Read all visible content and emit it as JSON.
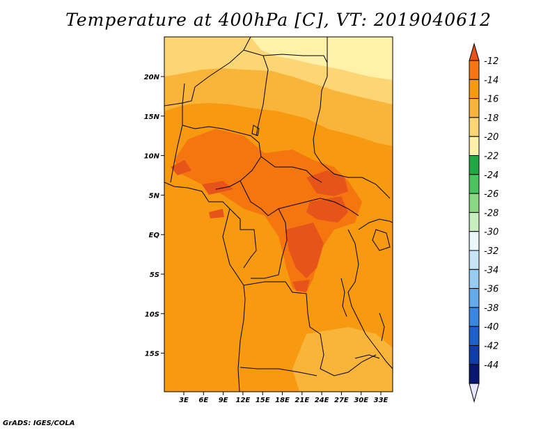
{
  "title": "Temperature at 400hPa [C], VT: 2019040612",
  "credit": "GrADS: IGES/COLA",
  "map": {
    "lat_labels": [
      "20N",
      "15N",
      "10N",
      "5N",
      "EQ",
      "5S",
      "10S",
      "15S"
    ],
    "lon_labels": [
      "3E",
      "6E",
      "9E",
      "12E",
      "15E",
      "18E",
      "21E",
      "24E",
      "27E",
      "30E",
      "33E"
    ]
  },
  "colorbar": {
    "labels": [
      "-12",
      "-14",
      "-16",
      "-18",
      "-20",
      "-22",
      "-24",
      "-26",
      "-28",
      "-30",
      "-32",
      "-34",
      "-36",
      "-38",
      "-40",
      "-42",
      "-44"
    ],
    "colors": [
      "#e6541a",
      "#f5760f",
      "#f79a10",
      "#f8b53a",
      "#fcd574",
      "#fff1a8",
      "#22a843",
      "#4cc35c",
      "#8ad884",
      "#c7eebf",
      "#ebf8fb",
      "#c7e5f7",
      "#98cbf1",
      "#64aaea",
      "#3b86e0",
      "#2060cc",
      "#0f3da8",
      "#09186e",
      "#e6e6ff"
    ]
  }
}
